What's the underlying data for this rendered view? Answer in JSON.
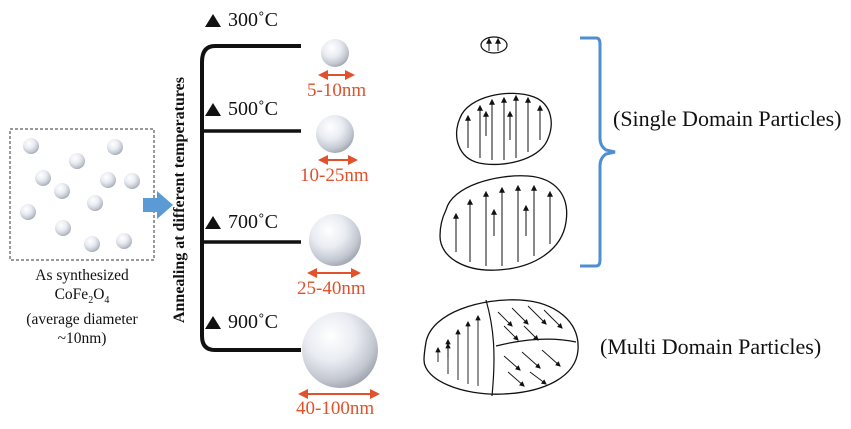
{
  "as_synthesized": {
    "line1": "As synthesized",
    "formula_prefix": "CoFe",
    "formula_sub1": "2",
    "formula_mid": "O",
    "formula_sub2": "4",
    "line3": "(average diameter",
    "line4": "~10nm)"
  },
  "axis_label": "Annealing at different temperatures",
  "temperatures": [
    {
      "label": "300˚C",
      "size": "5-10nm"
    },
    {
      "label": "500˚C",
      "size": "10-25nm"
    },
    {
      "label": "700˚C",
      "size": "25-40nm"
    },
    {
      "label": "900˚C",
      "size": "40-100nm"
    }
  ],
  "domain_labels": {
    "single": "(Single Domain Particles)",
    "multi": "(Multi Domain Particles)"
  },
  "colors": {
    "size_label": "#e0512c",
    "arrow_blue": "#5b9bd5",
    "bracket": "#4f8fcf"
  }
}
